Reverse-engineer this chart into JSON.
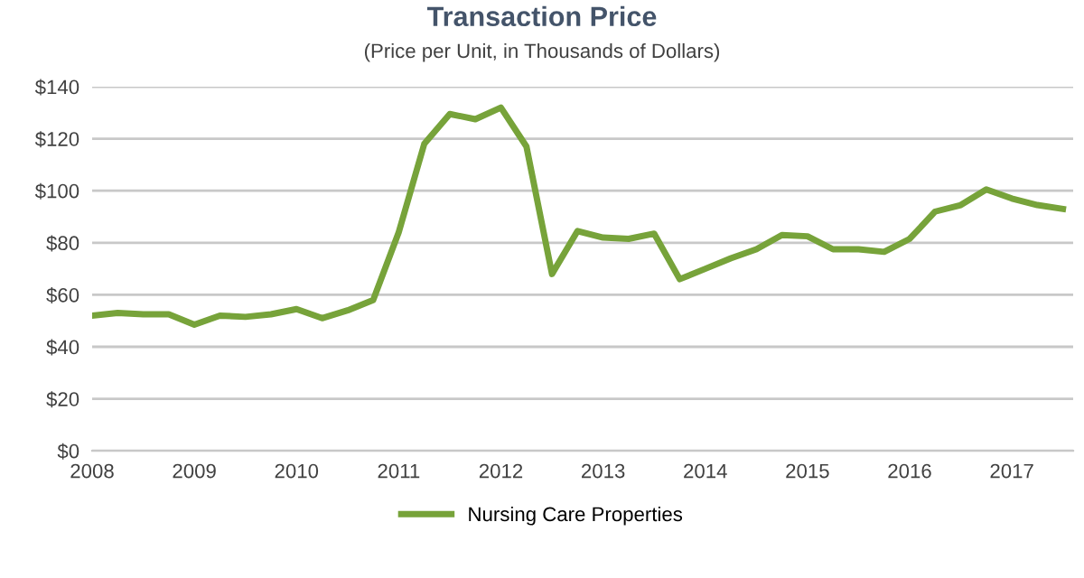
{
  "chart_data": {
    "type": "line",
    "title": "Transaction Price",
    "subtitle": "(Price per Unit, in Thousands of Dollars)",
    "x": [
      2008,
      2008.25,
      2008.5,
      2008.75,
      2009,
      2009.25,
      2009.5,
      2009.75,
      2010,
      2010.25,
      2010.5,
      2010.75,
      2011,
      2011.25,
      2011.5,
      2011.75,
      2012,
      2012.25,
      2012.5,
      2012.75,
      2013,
      2013.25,
      2013.5,
      2013.75,
      2014,
      2014.25,
      2014.5,
      2014.75,
      2015,
      2015.25,
      2015.5,
      2015.75,
      2016,
      2016.25,
      2016.5,
      2016.75,
      2017,
      2017.25,
      2017.5
    ],
    "series": [
      {
        "name": "Nursing Care Properties",
        "color": "#77a33a",
        "values": [
          52,
          53,
          52.5,
          52.5,
          48.5,
          52,
          51.5,
          52.5,
          54.5,
          51,
          54,
          58,
          84,
          118,
          129.5,
          127.5,
          132,
          117,
          68,
          84.5,
          82,
          81.5,
          83.5,
          66,
          70,
          74,
          77.5,
          83,
          82.5,
          77.5,
          77.5,
          76.5,
          81.5,
          92,
          94.5,
          100.5,
          97,
          94.5,
          93
        ]
      }
    ],
    "xlim": [
      2008,
      2017.6
    ],
    "xticks": [
      2008,
      2009,
      2010,
      2011,
      2012,
      2013,
      2014,
      2015,
      2016,
      2017
    ],
    "ylim": [
      0,
      140
    ],
    "yticks": [
      {
        "value": 0,
        "label": "$0"
      },
      {
        "value": 20,
        "label": "$20"
      },
      {
        "value": 40,
        "label": "$40"
      },
      {
        "value": 60,
        "label": "$60"
      },
      {
        "value": 80,
        "label": "$80"
      },
      {
        "value": 100,
        "label": "$100"
      },
      {
        "value": 120,
        "label": "$120"
      },
      {
        "value": 140,
        "label": "$140"
      }
    ],
    "grid": "y",
    "legend": "bottom",
    "marker": "none",
    "line_style": "solid"
  }
}
